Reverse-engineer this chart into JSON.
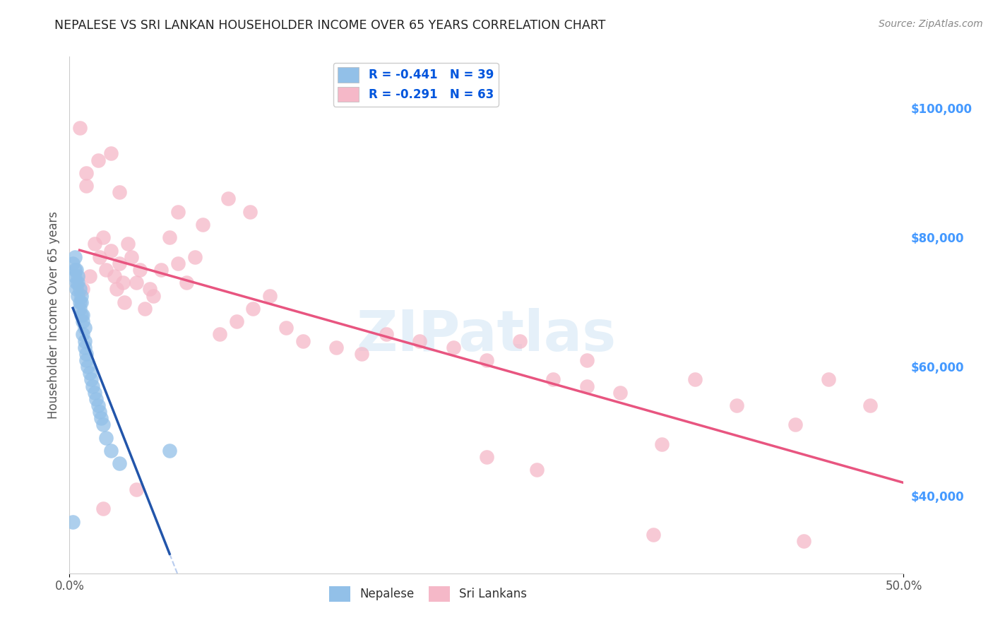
{
  "title": "NEPALESE VS SRI LANKAN HOUSEHOLDER INCOME OVER 65 YEARS CORRELATION CHART",
  "source": "Source: ZipAtlas.com",
  "ylabel": "Householder Income Over 65 years",
  "xlim": [
    0,
    0.5
  ],
  "ylim": [
    28000,
    108000
  ],
  "xticks": [
    0.0,
    0.5
  ],
  "xticklabels": [
    "0.0%",
    "50.0%"
  ],
  "yticks_right": [
    40000,
    60000,
    80000,
    100000
  ],
  "ytick_labels_right": [
    "$40,000",
    "$60,000",
    "$80,000",
    "$100,000"
  ],
  "legend_blue_text": "R = -0.441   N = 39",
  "legend_pink_text": "R = -0.291   N = 63",
  "legend_label_blue": "Nepalese",
  "legend_label_pink": "Sri Lankans",
  "blue_color": "#92c0e8",
  "pink_color": "#f5b8c8",
  "blue_line_color": "#2255aa",
  "pink_line_color": "#e85580",
  "dash_color": "#b8ccee",
  "watermark_color": "#d0e5f5",
  "background_color": "#ffffff",
  "grid_color": "#cccccc",
  "nepalese_x": [
    0.002,
    0.003,
    0.003,
    0.004,
    0.004,
    0.005,
    0.005,
    0.006,
    0.006,
    0.007,
    0.007,
    0.008,
    0.008,
    0.009,
    0.009,
    0.01,
    0.01,
    0.011,
    0.012,
    0.013,
    0.014,
    0.015,
    0.016,
    0.017,
    0.018,
    0.019,
    0.02,
    0.022,
    0.025,
    0.03,
    0.003,
    0.004,
    0.005,
    0.006,
    0.007,
    0.008,
    0.009,
    0.06,
    0.002
  ],
  "nepalese_y": [
    76000,
    75000,
    74000,
    73000,
    72000,
    71000,
    73000,
    70000,
    69000,
    68000,
    70000,
    67000,
    65000,
    64000,
    63000,
    62000,
    61000,
    60000,
    59000,
    58000,
    57000,
    56000,
    55000,
    54000,
    53000,
    52000,
    51000,
    49000,
    47000,
    45000,
    77000,
    75000,
    74000,
    72000,
    71000,
    68000,
    66000,
    47000,
    36000
  ],
  "srilankan_x": [
    0.006,
    0.008,
    0.01,
    0.012,
    0.015,
    0.017,
    0.018,
    0.02,
    0.022,
    0.025,
    0.027,
    0.028,
    0.03,
    0.032,
    0.033,
    0.035,
    0.037,
    0.04,
    0.042,
    0.045,
    0.048,
    0.05,
    0.055,
    0.06,
    0.065,
    0.07,
    0.075,
    0.08,
    0.09,
    0.1,
    0.11,
    0.12,
    0.13,
    0.14,
    0.16,
    0.175,
    0.19,
    0.21,
    0.23,
    0.25,
    0.27,
    0.29,
    0.31,
    0.33,
    0.355,
    0.375,
    0.4,
    0.435,
    0.455,
    0.48,
    0.01,
    0.025,
    0.095,
    0.108,
    0.03,
    0.065,
    0.35,
    0.44,
    0.02,
    0.04,
    0.25,
    0.28,
    0.31
  ],
  "srilankan_y": [
    97000,
    72000,
    90000,
    74000,
    79000,
    92000,
    77000,
    80000,
    75000,
    78000,
    74000,
    72000,
    76000,
    73000,
    70000,
    79000,
    77000,
    73000,
    75000,
    69000,
    72000,
    71000,
    75000,
    80000,
    76000,
    73000,
    77000,
    82000,
    65000,
    67000,
    69000,
    71000,
    66000,
    64000,
    63000,
    62000,
    65000,
    64000,
    63000,
    61000,
    64000,
    58000,
    61000,
    56000,
    48000,
    58000,
    54000,
    51000,
    58000,
    54000,
    88000,
    93000,
    86000,
    84000,
    87000,
    84000,
    34000,
    33000,
    38000,
    41000,
    46000,
    44000,
    57000
  ]
}
